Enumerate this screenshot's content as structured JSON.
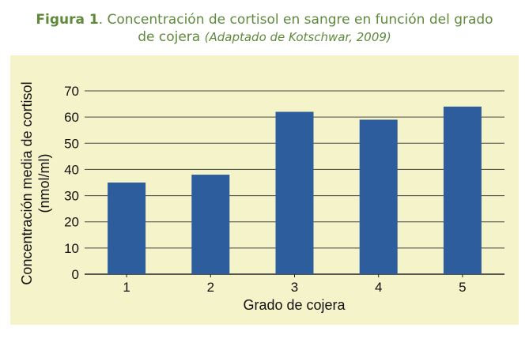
{
  "caption": {
    "figure_label": "Figura 1",
    "text": ". Concentración de cortisol en sangre en función del grado",
    "text_line2": "de cojera",
    "source": "(Adaptado de Kotschwar, 2009)"
  },
  "colors": {
    "caption": "#5f8a3c",
    "panel": "#f5f3c9",
    "bar": "#2e5d9e",
    "grid": "#444444"
  },
  "chart_data": {
    "type": "bar",
    "categories": [
      "1",
      "2",
      "3",
      "4",
      "5"
    ],
    "values": [
      35,
      38,
      62,
      59,
      64
    ],
    "xlabel": "Grado de cojera",
    "ylabel_line1": "Concentración media de cortisol",
    "ylabel_line2": "(nmol/ml)",
    "ylim": [
      0,
      70
    ],
    "yticks": [
      "0",
      "10",
      "20",
      "30",
      "40",
      "50",
      "60",
      "70"
    ],
    "grid": true
  }
}
